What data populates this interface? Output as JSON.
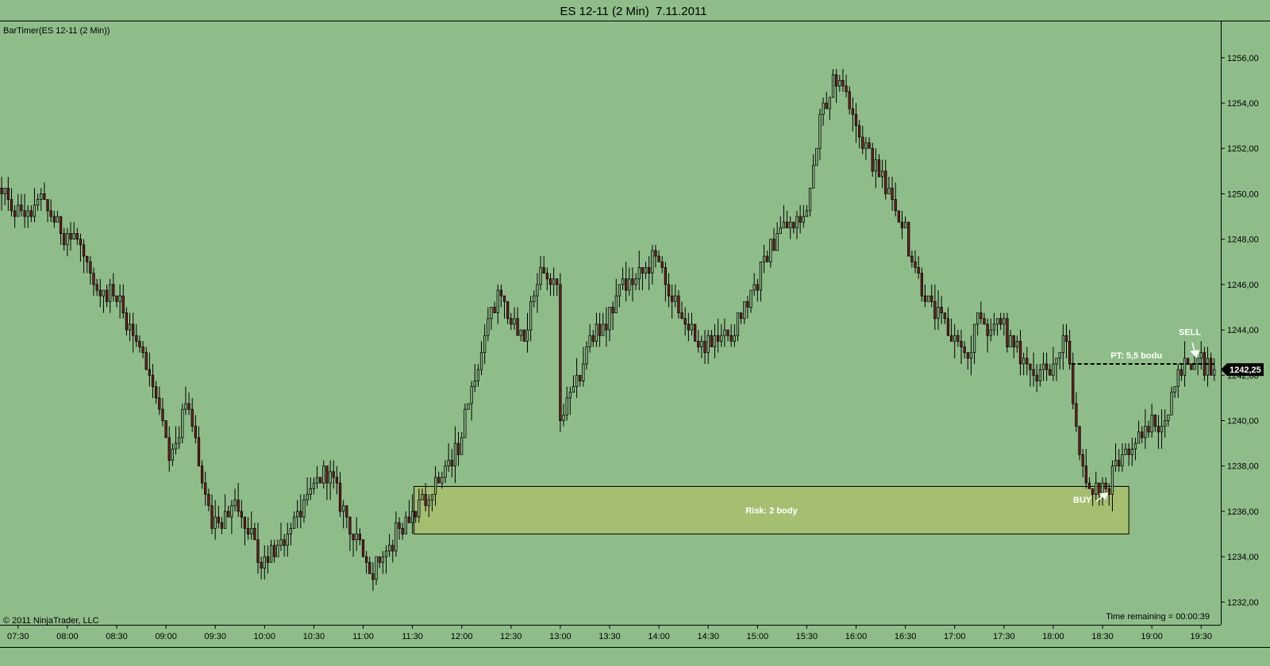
{
  "window": {
    "title": "ES 12-11 (2 Min)  7.11.2011"
  },
  "indicator_label": "BarTimer(ES 12-11 (2 Min))",
  "copyright": "© 2011 NinjaTrader, LLC",
  "time_remaining": "Time remaining = 00:00:39",
  "colors": {
    "background": "#8fbd8a",
    "up_candle": "#8fbd8a",
    "down_candle": "#7a1f1f",
    "wick": "#000000",
    "risk_zone": "#a9bf6c",
    "annotation": "#ffffff"
  },
  "chart_data": {
    "type": "candlestick",
    "title": "ES 12-11 (2 Min)  7.11.2011",
    "xlabel": "",
    "ylabel": "",
    "ylim": [
      1231.0,
      1257.6
    ],
    "xlim": [
      "07:19",
      "19:41"
    ],
    "y_ticks": [
      "1256,00",
      "1254,00",
      "1252,00",
      "1250,00",
      "1248,00",
      "1246,00",
      "1244,00",
      "1242,00",
      "1240,00",
      "1238,00",
      "1236,00",
      "1234,00",
      "1232,00"
    ],
    "x_ticks": [
      "07:30",
      "08:00",
      "08:30",
      "09:00",
      "09:30",
      "10:00",
      "10:30",
      "11:00",
      "11:30",
      "12:00",
      "12:30",
      "13:00",
      "13:30",
      "14:00",
      "14:30",
      "15:00",
      "15:30",
      "16:00",
      "16:30",
      "17:00",
      "17:30",
      "18:00",
      "18:30",
      "19:00",
      "19:30"
    ],
    "last_price": "1242,25",
    "price_path": [
      [
        "07:20",
        1250.2
      ],
      [
        "07:30",
        1249.2
      ],
      [
        "07:45",
        1249.6
      ],
      [
        "08:00",
        1248.3
      ],
      [
        "08:10",
        1247.9
      ],
      [
        "08:20",
        1245.4
      ],
      [
        "08:30",
        1245.7
      ],
      [
        "08:45",
        1243.4
      ],
      [
        "09:00",
        1240.4
      ],
      [
        "09:05",
        1238.2
      ],
      [
        "09:15",
        1241.0
      ],
      [
        "09:20",
        1239.0
      ],
      [
        "09:30",
        1235.4
      ],
      [
        "09:45",
        1236.0
      ],
      [
        "10:00",
        1233.7
      ],
      [
        "10:15",
        1235.0
      ],
      [
        "10:30",
        1236.8
      ],
      [
        "10:40",
        1237.8
      ],
      [
        "11:00",
        1234.4
      ],
      [
        "11:05",
        1233.1
      ],
      [
        "11:15",
        1234.4
      ],
      [
        "11:30",
        1236.0
      ],
      [
        "11:40",
        1236.3
      ],
      [
        "12:00",
        1238.8
      ],
      [
        "12:10",
        1242.0
      ],
      [
        "12:20",
        1244.7
      ],
      [
        "12:25",
        1245.4
      ],
      [
        "12:30",
        1244.9
      ],
      [
        "12:40",
        1243.6
      ],
      [
        "12:50",
        1246.8
      ],
      [
        "13:00",
        1245.7
      ],
      [
        "13:02",
        1240.4
      ],
      [
        "13:10",
        1241.0
      ],
      [
        "13:20",
        1243.7
      ],
      [
        "13:30",
        1244.3
      ],
      [
        "13:40",
        1245.8
      ],
      [
        "13:55",
        1246.6
      ],
      [
        "14:00",
        1247.4
      ],
      [
        "14:10",
        1245.5
      ],
      [
        "14:20",
        1243.9
      ],
      [
        "14:30",
        1243.3
      ],
      [
        "14:45",
        1243.6
      ],
      [
        "15:00",
        1245.9
      ],
      [
        "15:15",
        1248.5
      ],
      [
        "15:30",
        1248.7
      ],
      [
        "15:40",
        1253.4
      ],
      [
        "15:50",
        1255.3
      ],
      [
        "16:00",
        1253.8
      ],
      [
        "16:05",
        1252.4
      ],
      [
        "16:15",
        1251.1
      ],
      [
        "16:30",
        1248.6
      ],
      [
        "16:45",
        1245.3
      ],
      [
        "17:00",
        1243.7
      ],
      [
        "17:10",
        1242.7
      ],
      [
        "17:15",
        1244.4
      ],
      [
        "17:30",
        1244.1
      ],
      [
        "17:45",
        1242.3
      ],
      [
        "18:00",
        1242.3
      ],
      [
        "18:10",
        1243.9
      ],
      [
        "18:15",
        1240.2
      ],
      [
        "18:20",
        1237.8
      ],
      [
        "18:30",
        1236.6
      ],
      [
        "18:45",
        1238.5
      ],
      [
        "19:00",
        1239.8
      ],
      [
        "19:10",
        1240.0
      ],
      [
        "19:20",
        1242.3
      ],
      [
        "19:30",
        1242.7
      ],
      [
        "19:38",
        1242.25
      ]
    ],
    "annotations": {
      "risk_zone": {
        "from": "11:31",
        "to": "18:46",
        "low": 1235.0,
        "high": 1237.1,
        "label": "Risk: 2 body"
      },
      "target_line": {
        "from": "18:11",
        "to": "19:38",
        "price": 1242.5,
        "label": "PT: 5,5 bodu"
      },
      "buy": {
        "time": "18:33",
        "price": 1236.8,
        "label": "BUY"
      },
      "sell": {
        "time": "19:27",
        "price": 1242.8,
        "label": "SELL"
      }
    }
  }
}
